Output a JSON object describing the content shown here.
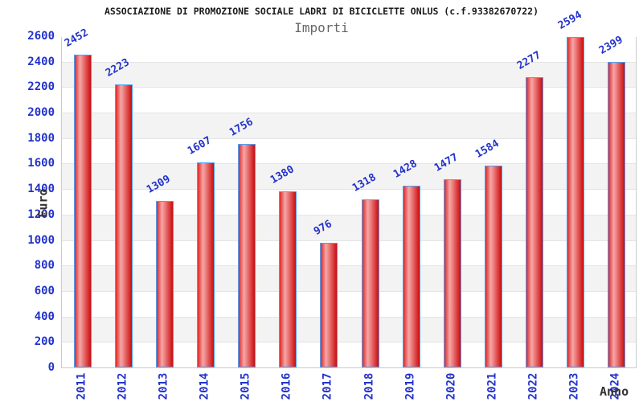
{
  "chart_data": {
    "type": "bar",
    "title": "ASSOCIAZIONE DI PROMOZIONE SOCIALE LADRI DI BICICLETTE ONLUS (c.f.93382670722)",
    "subtitle": "Importi",
    "xlabel": "Anno",
    "ylabel": "Euro",
    "categories": [
      "2011",
      "2012",
      "2013",
      "2014",
      "2015",
      "2016",
      "2017",
      "2018",
      "2019",
      "2020",
      "2021",
      "2022",
      "2023",
      "2024"
    ],
    "values": [
      2452,
      2223,
      1309,
      1607,
      1756,
      1380,
      976,
      1318,
      1428,
      1477,
      1584,
      2277,
      2594,
      2399
    ],
    "ylim": [
      0,
      2600
    ],
    "ytick_step": 200,
    "ytick_labels": [
      "0",
      "200",
      "400",
      "600",
      "800",
      "1000",
      "1200",
      "1400",
      "1600",
      "1800",
      "2000",
      "2200",
      "2400",
      "2600"
    ],
    "legend": "none",
    "grid": "horizontal-bands",
    "data_labels": "shown, rotated, above bars"
  },
  "colors": {
    "bar_gradient_start": "#da2a2a",
    "bar_gradient_highlight": "#f7a7a7",
    "bar_gradient_end": "#cd0b0b",
    "bar_border": "#4da0f5",
    "label_blue": "#2333cb",
    "band_gray": "#f3f3f3",
    "band_white": "#ffffff",
    "gridline": "#e4e4e4",
    "frame_border": "#cccccc",
    "title_color": "#1a1a1a",
    "subtitle_color": "#666666",
    "axis_label_color": "#333333"
  }
}
